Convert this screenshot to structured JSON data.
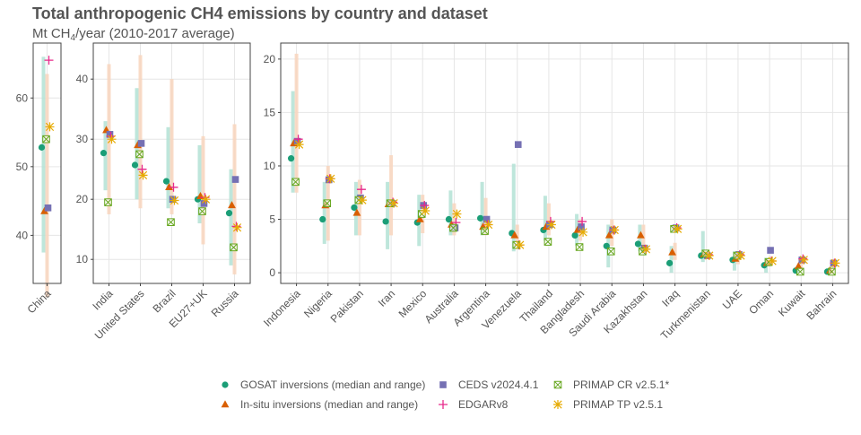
{
  "chart_data": {
    "type": "scatter",
    "title": "Total anthropogenic CH4 emissions by country and dataset",
    "subtitle_prefix": "Mt CH",
    "subtitle_sub": "4",
    "subtitle_suffix": "/year (2010-2017 average)",
    "colors": {
      "gosat": "#1b9e77",
      "gosat_range": "#b3e2d5",
      "insitu": "#d95f02",
      "insitu_range": "#f8d5bd",
      "ceds": "#7570b3",
      "edgar": "#e7298a",
      "primap_cr": "#66a61e",
      "primap_tp": "#e6ab02"
    },
    "legend": [
      {
        "key": "gosat",
        "label": "GOSAT inversions (median and range)"
      },
      {
        "key": "insitu",
        "label": "In-situ inversions (median and range)"
      },
      {
        "key": "ceds",
        "label": "CEDS v2024.4.1"
      },
      {
        "key": "edgar",
        "label": "EDGARv8"
      },
      {
        "key": "primap_cr",
        "label": "PRIMAP CR v2.5.1*"
      },
      {
        "key": "primap_tp",
        "label": "PRIMAP TP v2.5.1"
      }
    ],
    "panels": [
      {
        "ylim": [
          33,
          68
        ],
        "yticks": [
          40,
          50,
          60
        ],
        "countries": [
          {
            "name": "China",
            "gosat": [
              52.8,
              37.5,
              66.0
            ],
            "insitu": [
              43.5,
              31.0,
              63.5
            ],
            "ceds": 44.0,
            "edgar": 65.5,
            "primap_cr": 54.0,
            "primap_tp": 55.8
          }
        ]
      },
      {
        "ylim": [
          6,
          46
        ],
        "yticks": [
          10,
          20,
          30,
          40
        ],
        "countries": [
          {
            "name": "India",
            "gosat": [
              27.7,
              21.5,
              33.0
            ],
            "insitu": [
              31.5,
              17.5,
              42.5
            ],
            "ceds": 30.8,
            "edgar": 30.5,
            "primap_cr": 19.5,
            "primap_tp": 30.0
          },
          {
            "name": "United States",
            "gosat": [
              25.7,
              20.0,
              38.5
            ],
            "insitu": [
              29.0,
              18.5,
              44.0
            ],
            "ceds": 29.3,
            "edgar": 25.0,
            "primap_cr": 27.5,
            "primap_tp": 24.0
          },
          {
            "name": "Brazil",
            "gosat": [
              23.0,
              18.5,
              32.0
            ],
            "insitu": [
              22.0,
              17.5,
              40.0
            ],
            "ceds": 20.0,
            "edgar": 22.0,
            "primap_cr": 16.2,
            "primap_tp": 19.8
          },
          {
            "name": "EU27+UK",
            "gosat": [
              20.0,
              16.0,
              29.0
            ],
            "insitu": [
              20.5,
              12.5,
              30.5
            ],
            "ceds": 19.3,
            "edgar": 20.3,
            "primap_cr": 18.0,
            "primap_tp": 20.0
          },
          {
            "name": "Russia",
            "gosat": [
              17.7,
              9.0,
              25.0
            ],
            "insitu": [
              19.0,
              7.5,
              32.5
            ],
            "ceds": 23.3,
            "edgar": 15.5,
            "primap_cr": 12.0,
            "primap_tp": 15.3
          }
        ]
      },
      {
        "ylim": [
          -1,
          21.5
        ],
        "yticks": [
          0,
          5,
          10,
          15,
          20
        ],
        "countries": [
          {
            "name": "Indonesia",
            "gosat": [
              10.7,
              7.5,
              17.0
            ],
            "insitu": [
              12.1,
              7.5,
              20.5
            ],
            "ceds": 12.3,
            "edgar": 12.5,
            "primap_cr": 8.5,
            "primap_tp": 12.0
          },
          {
            "name": "Nigeria",
            "gosat": [
              5.0,
              2.7,
              8.5
            ],
            "insitu": [
              6.3,
              3.0,
              10.0
            ],
            "ceds": 8.7,
            "edgar": 8.8,
            "primap_cr": 6.5,
            "primap_tp": 8.8
          },
          {
            "name": "Pakistan",
            "gosat": [
              6.1,
              3.5,
              8.5
            ],
            "insitu": [
              5.6,
              3.5,
              8.7
            ],
            "ceds": 7.0,
            "edgar": 7.8,
            "primap_cr": 6.8,
            "primap_tp": 6.8
          },
          {
            "name": "Iran",
            "gosat": [
              4.8,
              2.2,
              8.5
            ],
            "insitu": [
              6.4,
              3.5,
              11.0
            ],
            "ceds": 6.5,
            "edgar": 6.6,
            "primap_cr": 6.5,
            "primap_tp": 6.5
          },
          {
            "name": "Mexico",
            "gosat": [
              4.7,
              2.5,
              7.3
            ],
            "insitu": [
              5.0,
              3.7,
              7.3
            ],
            "ceds": 6.3,
            "edgar": 6.3,
            "primap_cr": 5.5,
            "primap_tp": 5.8
          },
          {
            "name": "Australia",
            "gosat": [
              5.0,
              3.5,
              7.7
            ],
            "insitu": [
              4.5,
              3.5,
              6.5
            ],
            "ceds": 4.2,
            "edgar": 4.7,
            "primap_cr": 4.2,
            "primap_tp": 5.5
          },
          {
            "name": "Argentina",
            "gosat": [
              5.1,
              3.5,
              8.5
            ],
            "insitu": [
              4.3,
              3.5,
              7.0
            ],
            "ceds": 5.0,
            "edgar": 4.5,
            "primap_cr": 3.9,
            "primap_tp": 4.5
          },
          {
            "name": "Venezuela",
            "gosat": [
              3.7,
              2.0,
              10.2
            ],
            "insitu": [
              3.5,
              2.5,
              4.5
            ],
            "ceds": 12.0,
            "edgar": 2.6,
            "primap_cr": 2.6,
            "primap_tp": 2.6
          },
          {
            "name": "Thailand",
            "gosat": [
              4.0,
              3.0,
              7.2
            ],
            "insitu": [
              4.3,
              3.5,
              6.5
            ],
            "ceds": 4.5,
            "edgar": 4.8,
            "primap_cr": 2.9,
            "primap_tp": 4.5
          },
          {
            "name": "Bangladesh",
            "gosat": [
              3.5,
              2.5,
              5.5
            ],
            "insitu": [
              4.0,
              3.0,
              5.0
            ],
            "ceds": 4.3,
            "edgar": 4.8,
            "primap_cr": 2.4,
            "primap_tp": 3.8
          },
          {
            "name": "Saudi Arabia",
            "gosat": [
              2.5,
              0.5,
              4.5
            ],
            "insitu": [
              3.5,
              2.5,
              5.0
            ],
            "ceds": 4.0,
            "edgar": 4.0,
            "primap_cr": 2.0,
            "primap_tp": 4.0
          },
          {
            "name": "Kazakhstan",
            "gosat": [
              2.7,
              2.0,
              4.5
            ],
            "insitu": [
              3.5,
              2.5,
              4.5
            ],
            "ceds": 2.3,
            "edgar": 2.2,
            "primap_cr": 2.0,
            "primap_tp": 2.2
          },
          {
            "name": "Iraq",
            "gosat": [
              0.9,
              0.0,
              2.5
            ],
            "insitu": [
              1.9,
              1.2,
              2.8
            ],
            "ceds": 4.2,
            "edgar": 4.2,
            "primap_cr": 4.1,
            "primap_tp": 4.1
          },
          {
            "name": "Turkmenistan",
            "gosat": [
              1.6,
              1.0,
              3.9
            ],
            "insitu": [
              1.7,
              1.3,
              2.0
            ],
            "ceds": 1.6,
            "edgar": 1.7,
            "primap_cr": 1.8,
            "primap_tp": 1.6
          },
          {
            "name": "UAE",
            "gosat": [
              1.2,
              0.2,
              2.0
            ],
            "insitu": [
              1.3,
              0.8,
              1.9
            ],
            "ceds": 1.7,
            "edgar": 1.7,
            "primap_cr": 1.6,
            "primap_tp": 1.6
          },
          {
            "name": "Oman",
            "gosat": [
              0.7,
              0.0,
              1.4
            ],
            "insitu": [
              0.9,
              0.6,
              1.3
            ],
            "ceds": 2.1,
            "edgar": 1.1,
            "primap_cr": 1.0,
            "primap_tp": 1.1
          },
          {
            "name": "Kuwait",
            "gosat": [
              0.2,
              0.0,
              0.6
            ],
            "insitu": [
              0.6,
              0.3,
              1.2
            ],
            "ceds": 1.2,
            "edgar": 1.3,
            "primap_cr": 0.1,
            "primap_tp": 1.2
          },
          {
            "name": "Bahrain",
            "gosat": [
              0.1,
              0.0,
              0.3
            ],
            "insitu": [
              0.2,
              0.0,
              0.4
            ],
            "ceds": 0.9,
            "edgar": 0.9,
            "primap_cr": 0.1,
            "primap_tp": 0.9
          }
        ]
      }
    ]
  }
}
